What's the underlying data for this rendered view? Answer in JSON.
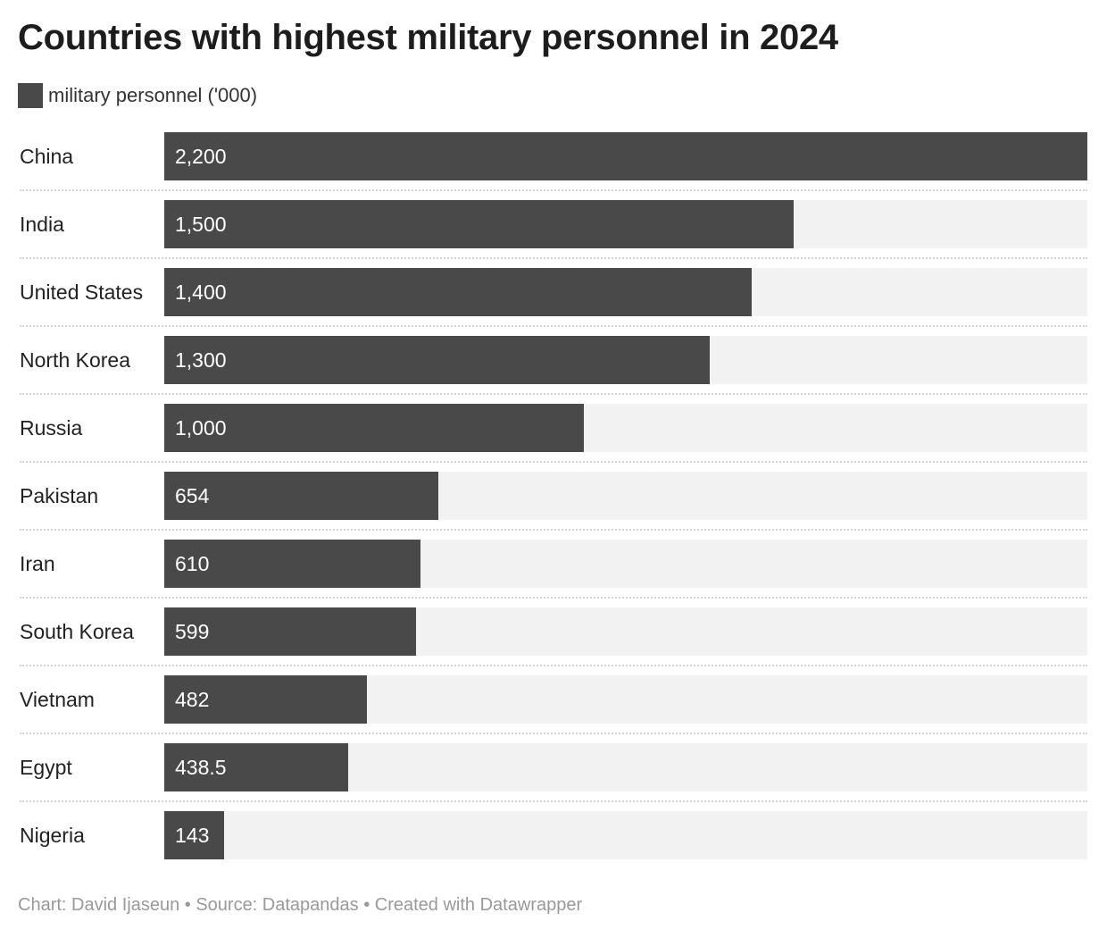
{
  "chart_data": {
    "type": "bar",
    "orientation": "horizontal",
    "title": "Countries with highest military personnel in 2024",
    "legend": [
      {
        "name": "military personnel ('000)",
        "color": "#494949"
      }
    ],
    "categories": [
      "China",
      "India",
      "United States",
      "North Korea",
      "Russia",
      "Pakistan",
      "Iran",
      "South Korea",
      "Vietnam",
      "Egypt",
      "Nigeria"
    ],
    "values": [
      2200,
      1500,
      1400,
      1300,
      1000,
      654,
      610,
      599,
      482,
      438.5,
      143
    ],
    "value_labels": [
      "2,200",
      "1,500",
      "1,400",
      "1,300",
      "1,000",
      "654",
      "610",
      "599",
      "482",
      "438.5",
      "143"
    ],
    "xlim": [
      0,
      2200
    ],
    "bar_color": "#494949",
    "track_color": "#f2f2f2",
    "grid": false,
    "legend_position": "top-left"
  },
  "footer": "Chart: David Ijaseun • Source: Datapandas • Created with Datawrapper"
}
